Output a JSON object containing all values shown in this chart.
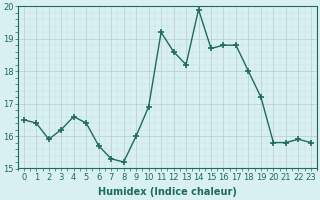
{
  "x": [
    0,
    1,
    2,
    3,
    4,
    5,
    6,
    7,
    8,
    9,
    10,
    11,
    12,
    13,
    14,
    15,
    16,
    17,
    18,
    19,
    20,
    21,
    22,
    23
  ],
  "y": [
    16.5,
    16.4,
    15.9,
    16.2,
    16.6,
    16.4,
    15.7,
    15.3,
    15.2,
    16.0,
    16.9,
    19.2,
    18.6,
    18.2,
    19.9,
    18.7,
    18.8,
    18.8,
    18.0,
    17.2,
    15.8,
    15.8,
    15.9,
    15.8
  ],
  "xlabel": "Humidex (Indice chaleur)",
  "ylim": [
    15.0,
    20.0
  ],
  "xlim_min": -0.5,
  "xlim_max": 23.5,
  "yticks": [
    15,
    16,
    17,
    18,
    19,
    20
  ],
  "xticks": [
    0,
    1,
    2,
    3,
    4,
    5,
    6,
    7,
    8,
    9,
    10,
    11,
    12,
    13,
    14,
    15,
    16,
    17,
    18,
    19,
    20,
    21,
    22,
    23
  ],
  "line_color": "#1e6b5e",
  "marker": "+",
  "marker_size": 5,
  "bg_color": "#d8f0f0",
  "grid_color_minor": "#c8dede",
  "grid_color_major": "#b8cccc",
  "line_width": 1.0,
  "xlabel_fontsize": 7,
  "tick_fontsize": 6,
  "marker_linewidth": 1.2
}
